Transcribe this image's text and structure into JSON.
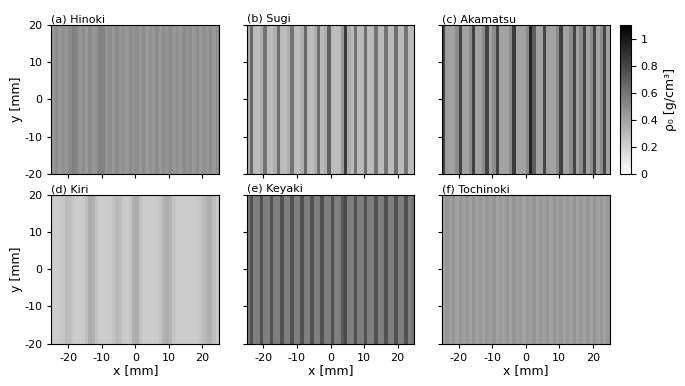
{
  "chart_data": [
    {
      "type": "heatmap",
      "title": "(a) Hinoki",
      "ylabel": "y [mm]",
      "tick_labels": "y",
      "xlim": [
        -25,
        25
      ],
      "ylim": [
        -20,
        20
      ],
      "xticks": [
        -20,
        -10,
        0,
        10,
        20
      ],
      "yticks": [
        -20,
        -10,
        0,
        10,
        20
      ],
      "x_edges": [
        -25,
        -24,
        -23,
        -22,
        -21,
        -20,
        -19,
        -18,
        -17,
        -16,
        -15,
        -14,
        -13,
        -12,
        -11,
        -10,
        -9,
        -8,
        -7,
        -6,
        -5,
        -4,
        -3,
        -2,
        -1,
        0,
        1,
        2,
        3,
        4,
        5,
        6,
        7,
        8,
        9,
        10,
        11,
        12,
        13,
        14,
        15,
        16,
        17,
        18,
        19,
        20,
        21,
        22,
        23,
        24,
        25
      ],
      "y_edges": [
        -20,
        20
      ],
      "cells": [
        [
          0.45,
          0.5,
          0.44,
          0.48,
          0.45,
          0.5,
          0.55,
          0.52,
          0.46,
          0.49,
          0.44,
          0.5,
          0.45,
          0.48,
          0.54,
          0.53,
          0.46,
          0.49,
          0.44,
          0.5,
          0.45,
          0.48,
          0.44,
          0.5,
          0.46,
          0.49,
          0.45,
          0.5,
          0.44,
          0.48,
          0.45,
          0.5,
          0.44,
          0.49,
          0.46,
          0.5,
          0.45,
          0.48,
          0.44,
          0.5,
          0.46,
          0.49,
          0.45,
          0.5,
          0.44,
          0.48,
          0.45,
          0.5,
          0.44,
          0.48
        ]
      ]
    },
    {
      "type": "heatmap",
      "title": "(b) Sugi",
      "tick_labels": false,
      "xlim": [
        -25,
        25
      ],
      "ylim": [
        -20,
        20
      ],
      "xticks": [
        -20,
        -10,
        0,
        10,
        20
      ],
      "yticks": [
        -20,
        -10,
        0,
        10,
        20
      ],
      "x_edges": [
        -25,
        -24,
        -23,
        -22,
        -21,
        -20,
        -19,
        -18,
        -17,
        -16,
        -15,
        -14,
        -13,
        -12,
        -11,
        -10,
        -9,
        -8,
        -7,
        -6,
        -5,
        -4,
        -3,
        -2,
        -1,
        0,
        1,
        2,
        3,
        4,
        5,
        6,
        7,
        8,
        9,
        10,
        11,
        12,
        13,
        14,
        15,
        16,
        17,
        18,
        19,
        20,
        21,
        22,
        23,
        24,
        25
      ],
      "y_edges": [
        -20,
        20
      ],
      "cells": [
        [
          0.35,
          0.65,
          0.3,
          0.28,
          0.35,
          0.6,
          0.3,
          0.28,
          0.35,
          0.62,
          0.3,
          0.28,
          0.35,
          0.6,
          0.3,
          0.28,
          0.35,
          0.65,
          0.3,
          0.28,
          0.35,
          0.62,
          0.3,
          0.35,
          0.68,
          0.3,
          0.28,
          0.3,
          0.45,
          0.85,
          0.35,
          0.3,
          0.6,
          0.3,
          0.3,
          0.62,
          0.3,
          0.3,
          0.6,
          0.3,
          0.3,
          0.6,
          0.3,
          0.3,
          0.62,
          0.3,
          0.3,
          0.6,
          0.3,
          0.3
        ]
      ]
    },
    {
      "type": "heatmap",
      "title": "(c) Akamatsu",
      "tick_labels": false,
      "xlim": [
        -25,
        25
      ],
      "ylim": [
        -20,
        20
      ],
      "xticks": [
        -20,
        -10,
        0,
        10,
        20
      ],
      "yticks": [
        -20,
        -10,
        0,
        10,
        20
      ],
      "x_edges": [
        -25,
        -24,
        -23,
        -22,
        -21,
        -20,
        -19,
        -18,
        -17,
        -16,
        -15,
        -14,
        -13,
        -12,
        -11,
        -10,
        -9,
        -8,
        -7,
        -6,
        -5,
        -4,
        -3,
        -2,
        -1,
        0,
        1,
        2,
        3,
        4,
        5,
        6,
        7,
        8,
        9,
        10,
        11,
        12,
        13,
        14,
        15,
        16,
        17,
        18,
        19,
        20,
        21,
        22,
        23,
        24,
        25
      ],
      "y_edges": [
        -20,
        20
      ],
      "cells": [
        [
          0.8,
          0.42,
          0.4,
          0.4,
          0.5,
          0.8,
          0.4,
          0.4,
          0.5,
          0.82,
          0.4,
          0.4,
          0.5,
          0.8,
          0.4,
          0.5,
          0.8,
          0.4,
          0.4,
          0.4,
          0.5,
          0.85,
          0.4,
          0.4,
          0.4,
          0.5,
          0.95,
          0.7,
          0.4,
          0.4,
          0.8,
          0.42,
          0.4,
          0.4,
          0.5,
          0.82,
          0.4,
          0.4,
          0.5,
          0.8,
          0.4,
          0.5,
          0.8,
          0.4,
          0.5,
          0.8,
          0.4,
          0.5,
          0.8,
          0.4
        ]
      ],
      "colorbar": {
        "range": [
          0,
          1.1
        ],
        "ticks": [
          0,
          0.2,
          0.4,
          0.6,
          0.8,
          1
        ],
        "label": "ρ₀ [g/cm³]"
      }
    },
    {
      "type": "heatmap",
      "title": "(d) Kiri",
      "xlabel": "x [mm]",
      "ylabel": "y [mm]",
      "xlim": [
        -25,
        25
      ],
      "ylim": [
        -20,
        20
      ],
      "xticks": [
        -20,
        -10,
        0,
        10,
        20
      ],
      "yticks": [
        -20,
        -10,
        0,
        10,
        20
      ],
      "x_edges": [
        -25,
        -24,
        -23,
        -22,
        -21,
        -20,
        -19,
        -18,
        -17,
        -16,
        -15,
        -14,
        -13,
        -12,
        -11,
        -10,
        -9,
        -8,
        -7,
        -6,
        -5,
        -4,
        -3,
        -2,
        -1,
        0,
        1,
        2,
        3,
        4,
        5,
        6,
        7,
        8,
        9,
        10,
        11,
        12,
        13,
        14,
        15,
        16,
        17,
        18,
        19,
        20,
        21,
        22,
        23,
        24,
        25
      ],
      "y_edges": [
        -20,
        20
      ],
      "cells": [
        [
          0.22,
          0.22,
          0.23,
          0.25,
          0.3,
          0.28,
          0.24,
          0.22,
          0.22,
          0.23,
          0.28,
          0.36,
          0.34,
          0.26,
          0.22,
          0.22,
          0.22,
          0.23,
          0.26,
          0.3,
          0.28,
          0.24,
          0.22,
          0.26,
          0.34,
          0.36,
          0.27,
          0.22,
          0.22,
          0.22,
          0.22,
          0.23,
          0.26,
          0.32,
          0.36,
          0.33,
          0.25,
          0.22,
          0.22,
          0.22,
          0.22,
          0.22,
          0.23,
          0.24,
          0.26,
          0.3,
          0.34,
          0.35,
          0.28,
          0.24
        ]
      ]
    },
    {
      "type": "heatmap",
      "title": "(e) Keyaki",
      "xlabel": "x [mm]",
      "tick_labels": "x",
      "xlim": [
        -25,
        25
      ],
      "ylim": [
        -20,
        20
      ],
      "xticks": [
        -20,
        -10,
        0,
        10,
        20
      ],
      "yticks": [
        -20,
        -10,
        0,
        10,
        20
      ],
      "x_edges": [
        -25,
        -24,
        -23,
        -22,
        -21,
        -20,
        -19,
        -18,
        -17,
        -16,
        -15,
        -14,
        -13,
        -12,
        -11,
        -10,
        -9,
        -8,
        -7,
        -6,
        -5,
        -4,
        -3,
        -2,
        -1,
        0,
        1,
        2,
        3,
        4,
        5,
        6,
        7,
        8,
        9,
        10,
        11,
        12,
        13,
        14,
        15,
        16,
        17,
        18,
        19,
        20,
        21,
        22,
        23,
        24,
        25
      ],
      "y_edges": [
        -20,
        20
      ],
      "cells": [
        [
          0.58,
          0.75,
          0.55,
          0.55,
          0.75,
          0.55,
          0.55,
          0.75,
          0.55,
          0.55,
          0.75,
          0.55,
          0.55,
          0.75,
          0.55,
          0.55,
          0.75,
          0.55,
          0.55,
          0.75,
          0.55,
          0.55,
          0.75,
          0.55,
          0.55,
          0.75,
          0.55,
          0.55,
          0.72,
          0.78,
          0.55,
          0.55,
          0.75,
          0.55,
          0.55,
          0.75,
          0.55,
          0.55,
          0.75,
          0.55,
          0.55,
          0.75,
          0.55,
          0.55,
          0.75,
          0.55,
          0.55,
          0.75,
          0.55,
          0.6
        ]
      ]
    },
    {
      "type": "heatmap",
      "title": "(f) Tochinoki",
      "xlabel": "x [mm]",
      "tick_labels": "x",
      "xlim": [
        -25,
        25
      ],
      "ylim": [
        -20,
        20
      ],
      "xticks": [
        -20,
        -10,
        0,
        10,
        20
      ],
      "yticks": [
        -20,
        -10,
        0,
        10,
        20
      ],
      "x_edges": [
        -25,
        -24,
        -23,
        -22,
        -21,
        -20,
        -19,
        -18,
        -17,
        -16,
        -15,
        -14,
        -13,
        -12,
        -11,
        -10,
        -9,
        -8,
        -7,
        -6,
        -5,
        -4,
        -3,
        -2,
        -1,
        0,
        1,
        2,
        3,
        4,
        5,
        6,
        7,
        8,
        9,
        10,
        11,
        12,
        13,
        14,
        15,
        16,
        17,
        18,
        19,
        20,
        21,
        22,
        23,
        24,
        25
      ],
      "y_edges": [
        -20,
        20
      ],
      "cells": [
        [
          0.4,
          0.45,
          0.41,
          0.46,
          0.4,
          0.45,
          0.41,
          0.44,
          0.4,
          0.46,
          0.41,
          0.45,
          0.4,
          0.45,
          0.41,
          0.46,
          0.4,
          0.44,
          0.41,
          0.45,
          0.4,
          0.46,
          0.41,
          0.45,
          0.4,
          0.45,
          0.41,
          0.46,
          0.4,
          0.44,
          0.41,
          0.45,
          0.4,
          0.46,
          0.41,
          0.45,
          0.4,
          0.45,
          0.41,
          0.46,
          0.4,
          0.44,
          0.41,
          0.45,
          0.4,
          0.46,
          0.41,
          0.45,
          0.4,
          0.45
        ]
      ]
    }
  ]
}
